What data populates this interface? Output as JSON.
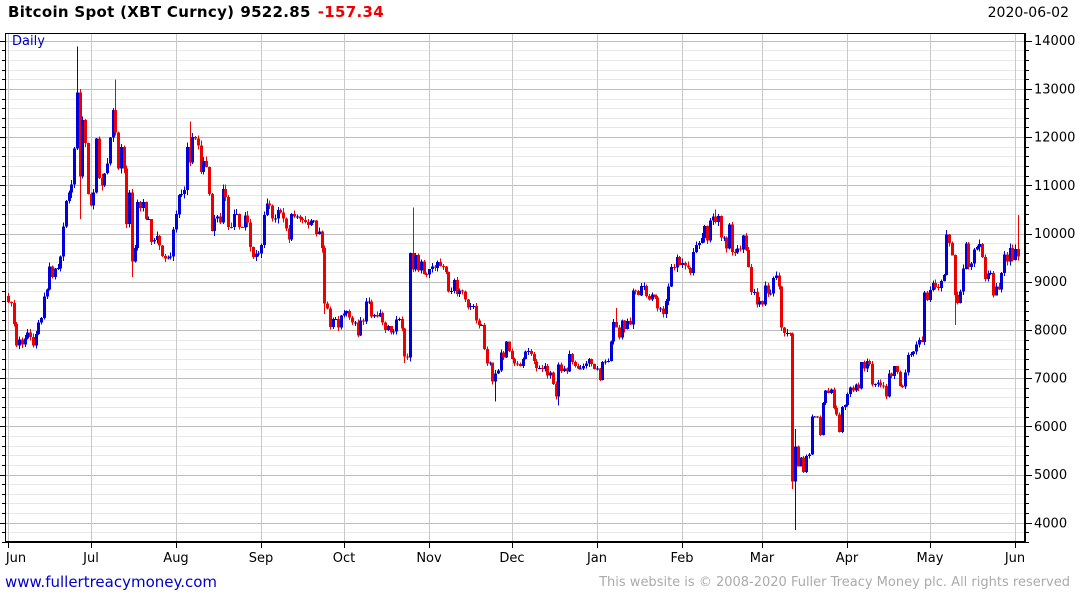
{
  "header": {
    "instrument": "Bitcoin Spot (XBT Curncy)",
    "last_price": "9522.85",
    "change": "-157.34",
    "date": "2020-06-02"
  },
  "footer": {
    "link": "www.fullertreacymoney.com",
    "copyright": "This website is © 2008-2020 Fuller Treacy Money plc. All rights reserved"
  },
  "chart_data": {
    "type": "candlestick",
    "title": "Bitcoin Spot (XBT Curncy)",
    "frequency": "Daily",
    "last_price": 9522.85,
    "change": -157.34,
    "period": "2019-06-01 to 2020-06-02",
    "x_axis": {
      "tick_labels": [
        "Jun",
        "Jul",
        "Aug",
        "Sep",
        "Oct",
        "Nov",
        "Dec",
        "Jan",
        "Feb",
        "Mar",
        "Apr",
        "May",
        "Jun"
      ],
      "month_start_day_index": [
        0,
        30,
        61,
        92,
        122,
        153,
        183,
        214,
        245,
        274,
        305,
        335,
        366
      ]
    },
    "y_axis": {
      "tick_labels": [
        4000,
        5000,
        6000,
        7000,
        8000,
        9000,
        10000,
        11000,
        12000,
        13000,
        14000
      ],
      "minor_step": 200,
      "major_step": 1000,
      "range": [
        3580,
        14160
      ]
    },
    "colors": {
      "up": "#0000dd",
      "down": "#ee0000",
      "grid_major": "#bdbdbd",
      "grid_minor": "#e8e8e8",
      "grid_month": "#c9c9c9",
      "axis": "#000000",
      "frequency_label": "#0000bb",
      "link": "#0000cc",
      "copyright": "#ababab"
    },
    "open_first": 8700,
    "closes": [
      8580,
      8560,
      8120,
      7680,
      7800,
      7700,
      7820,
      7950,
      7850,
      7680,
      7920,
      8150,
      8250,
      8690,
      8840,
      9320,
      9100,
      9270,
      9280,
      9520,
      10150,
      10680,
      10850,
      11020,
      11760,
      12930,
      11180,
      12360,
      11880,
      10820,
      10580,
      10850,
      11970,
      11150,
      11000,
      11250,
      11450,
      11990,
      12560,
      12100,
      11350,
      11790,
      11350,
      10200,
      10850,
      9420,
      9700,
      10650,
      10530,
      10650,
      10300,
      10300,
      9830,
      9870,
      9950,
      9750,
      9530,
      9480,
      9500,
      9520,
      10080,
      10400,
      10800,
      10820,
      10900,
      11800,
      11470,
      12000,
      11970,
      11830,
      11280,
      11500,
      11380,
      10820,
      10050,
      10310,
      10350,
      10230,
      10920,
      10760,
      10140,
      10130,
      10400,
      10410,
      10140,
      10130,
      10370,
      10230,
      9720,
      9510,
      9590,
      9590,
      9760,
      10380,
      10620,
      10580,
      10310,
      10310,
      10490,
      10440,
      10310,
      10100,
      9880,
      10410,
      10350,
      10350,
      10310,
      10280,
      10240,
      10180,
      10270,
      10270,
      9990,
      10040,
      9700,
      8550,
      8440,
      8060,
      8230,
      8230,
      8050,
      8300,
      8340,
      8390,
      8260,
      8150,
      8150,
      7880,
      8200,
      8180,
      8590,
      8590,
      8280,
      8310,
      8280,
      8350,
      8150,
      8000,
      8080,
      7950,
      7970,
      8220,
      8230,
      8030,
      7450,
      7430,
      9600,
      9250,
      9550,
      9230,
      9420,
      9160,
      9150,
      9260,
      9320,
      9290,
      9410,
      9330,
      9320,
      9200,
      8800,
      8810,
      9040,
      8750,
      8820,
      8800,
      8630,
      8470,
      8500,
      8500,
      8200,
      8100,
      8100,
      7600,
      7300,
      7320,
      6930,
      7100,
      7160,
      7530,
      7430,
      7760,
      7560,
      7400,
      7300,
      7290,
      7250,
      7400,
      7550,
      7560,
      7500,
      7350,
      7210,
      7210,
      7190,
      7250,
      7060,
      7120,
      6880,
      6620,
      7280,
      7150,
      7200,
      7140,
      7500,
      7330,
      7250,
      7200,
      7200,
      7250,
      7300,
      7400,
      7290,
      7190,
      7200,
      6960,
      7340,
      7350,
      7360,
      7760,
      8160,
      8050,
      7840,
      8200,
      8020,
      8190,
      8110,
      8820,
      8810,
      8720,
      8910,
      8910,
      8700,
      8630,
      8730,
      8670,
      8440,
      8440,
      8330,
      8600,
      8900,
      9310,
      9290,
      9510,
      9350,
      9390,
      9340,
      9290,
      9180,
      9620,
      9760,
      9800,
      9910,
      10160,
      9860,
      10270,
      10350,
      10240,
      10360,
      9920,
      9920,
      9690,
      10190,
      9620,
      9610,
      9690,
      9670,
      9960,
      9660,
      9310,
      8790,
      8790,
      8530,
      8600,
      8530,
      8920,
      8760,
      8760,
      9080,
      9130,
      8900,
      8050,
      7940,
      7940,
      7930,
      4860,
      5580,
      5170,
      5350,
      5050,
      5380,
      5420,
      6200,
      6200,
      6190,
      5820,
      6480,
      6740,
      6690,
      6760,
      6380,
      6250,
      5880,
      6400,
      6440,
      6670,
      6810,
      6740,
      6870,
      6780,
      7330,
      7200,
      7360,
      7290,
      6870,
      6880,
      6910,
      6850,
      6840,
      6620,
      7100,
      7040,
      7250,
      7130,
      6840,
      6830,
      7120,
      7480,
      7500,
      7550,
      7700,
      7790,
      7750,
      8780,
      8620,
      8830,
      8970,
      8890,
      8870,
      9020,
      9140,
      9980,
      9800,
      9550,
      8720,
      8560,
      8800,
      9270,
      9790,
      9310,
      9380,
      9670,
      9720,
      9780,
      9510,
      9060,
      9170,
      9180,
      8720,
      8900,
      8840,
      9180,
      9570,
      9420,
      9700,
      9450,
      9680,
      9522.85
    ],
    "wick_overrides": {
      "25": {
        "high": 13880
      },
      "26": {
        "low": 10300
      },
      "39": {
        "high": 13200
      },
      "45": {
        "low": 9100
      },
      "66": {
        "high": 12325
      },
      "115": {
        "low": 8330
      },
      "144": {
        "low": 7310
      },
      "147": {
        "high": 10540
      },
      "177": {
        "low": 6520
      },
      "199": {
        "low": 6560
      },
      "200": {
        "low": 6435
      },
      "221": {
        "high": 8460
      },
      "257": {
        "high": 10500
      },
      "285": {
        "low": 4700
      },
      "286": {
        "low": 3850,
        "high": 5950
      },
      "341": {
        "high": 10070
      },
      "344": {
        "low": 8100
      },
      "367": {
        "high": 10380
      }
    }
  }
}
